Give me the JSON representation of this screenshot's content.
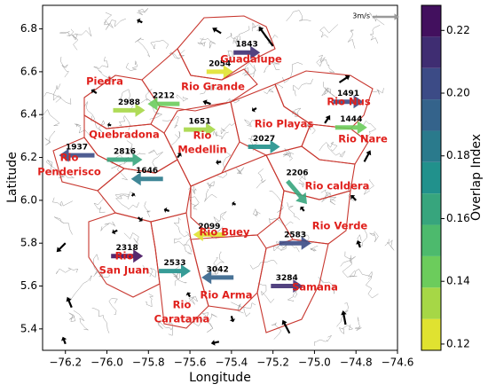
{
  "chart_data": {
    "type": "quiver",
    "xlabel": "Longitude",
    "ylabel": "Latitude",
    "xlim": [
      -76.31,
      -74.6
    ],
    "ylim": [
      5.3,
      6.91
    ],
    "xticks": [
      {
        "value": -76.2,
        "label": "−76.2"
      },
      {
        "value": -76.0,
        "label": "−76.0"
      },
      {
        "value": -75.8,
        "label": "−75.8"
      },
      {
        "value": -75.6,
        "label": "−75.6"
      },
      {
        "value": -75.4,
        "label": "−75.4"
      },
      {
        "value": -75.2,
        "label": "−75.2"
      },
      {
        "value": -75.0,
        "label": "−75.0"
      },
      {
        "value": -74.8,
        "label": "−74.8"
      },
      {
        "value": -74.6,
        "label": "−74.6"
      }
    ],
    "yticks": [
      5.4,
      5.6,
      5.8,
      {
        "value": 6.0,
        "label": "6.0"
      },
      6.2,
      6.4,
      6.6,
      6.8
    ],
    "colorbar": {
      "label": "Overlap Index",
      "clim": [
        0.118,
        0.228
      ],
      "step": 0.01,
      "ticks": [
        0.12,
        0.14,
        0.16,
        0.18,
        {
          "value": 0.2,
          "label": "0.20"
        },
        0.22
      ]
    },
    "quiver_key": {
      "u": 3,
      "label": "3m/s"
    },
    "regions": [
      {
        "lines": [
          "Piedra"
        ]
      },
      {
        "lines": [
          "Rio Grande"
        ]
      },
      {
        "lines": [
          "Guadalupe"
        ]
      },
      {
        "lines": [
          "Rio Nus"
        ]
      },
      {
        "lines": [
          "Rio Nare"
        ]
      },
      {
        "lines": [
          "Rio Playas"
        ]
      },
      {
        "lines": [
          "Quebradona"
        ]
      },
      {
        "lines": [
          "Rio",
          "Medellin"
        ]
      },
      {
        "lines": [
          "Rio",
          "Penderisco"
        ]
      },
      {
        "lines": [
          "Rio caldera"
        ]
      },
      {
        "lines": [
          "Rio Verde"
        ]
      },
      {
        "lines": [
          "Rio Buey"
        ]
      },
      {
        "lines": [
          "Rio",
          "San Juan"
        ]
      },
      {
        "lines": [
          "Samana"
        ]
      },
      {
        "lines": [
          "Rio Arma"
        ]
      },
      {
        "lines": [
          "Rio",
          "Caratama"
        ]
      }
    ],
    "stations": [
      {
        "elevation": 1843,
        "x": -75.39,
        "y": 6.69,
        "u": 3.0,
        "v": 0.0,
        "overlap": 0.215
      },
      {
        "elevation": 2054,
        "x": -75.52,
        "y": 6.6,
        "u": 3.0,
        "v": 0.0,
        "overlap": 0.121
      },
      {
        "elevation": 1491,
        "x": -74.91,
        "y": 6.46,
        "u": 3.4,
        "v": 0.0,
        "overlap": 0.2
      },
      {
        "elevation": 1444,
        "x": -74.9,
        "y": 6.34,
        "u": 3.6,
        "v": 0.0,
        "overlap": 0.146
      },
      {
        "elevation": 2988,
        "x": -75.97,
        "y": 6.42,
        "u": 3.6,
        "v": 0.0,
        "overlap": 0.135
      },
      {
        "elevation": 2212,
        "x": -75.65,
        "y": 6.45,
        "u": -3.6,
        "v": 0.0,
        "overlap": 0.142
      },
      {
        "elevation": 1651,
        "x": -75.63,
        "y": 6.33,
        "u": 3.6,
        "v": 0.0,
        "overlap": 0.136
      },
      {
        "elevation": 2027,
        "x": -75.32,
        "y": 6.25,
        "u": 3.6,
        "v": 0.0,
        "overlap": 0.168
      },
      {
        "elevation": 1937,
        "x": -76.06,
        "y": 6.21,
        "u": -4.0,
        "v": 0.0,
        "overlap": 0.198
      },
      {
        "elevation": 2816,
        "x": -76.0,
        "y": 6.19,
        "u": 4.0,
        "v": 0.0,
        "overlap": 0.164
      },
      {
        "elevation": 1646,
        "x": -75.73,
        "y": 6.1,
        "u": -3.6,
        "v": 0.0,
        "overlap": 0.183
      },
      {
        "elevation": 2206,
        "x": -75.13,
        "y": 6.09,
        "u": 2.2,
        "v": -2.6,
        "overlap": 0.166
      },
      {
        "elevation": 2099,
        "x": -75.43,
        "y": 5.84,
        "u": -3.6,
        "v": 0.0,
        "overlap": 0.124
      },
      {
        "elevation": 2583,
        "x": -75.17,
        "y": 5.8,
        "u": 3.6,
        "v": 0.0,
        "overlap": 0.205
      },
      {
        "elevation": 2318,
        "x": -75.98,
        "y": 5.74,
        "u": 3.6,
        "v": 0.0,
        "overlap": 0.222
      },
      {
        "elevation": 2533,
        "x": -75.75,
        "y": 5.67,
        "u": 3.6,
        "v": 0.0,
        "overlap": 0.172
      },
      {
        "elevation": 3042,
        "x": -75.39,
        "y": 5.64,
        "u": -3.6,
        "v": 0.0,
        "overlap": 0.19
      },
      {
        "elevation": 3284,
        "x": -75.21,
        "y": 5.6,
        "u": 3.6,
        "v": 0.0,
        "overlap": 0.212
      }
    ],
    "wind": [
      {
        "x": -75.2,
        "y": 6.72,
        "u": -1.6,
        "v": 2.2
      },
      {
        "x": -75.45,
        "y": 6.78,
        "u": -1.0,
        "v": 0.6
      },
      {
        "x": -75.83,
        "y": 6.83,
        "u": -0.6,
        "v": 0.3
      },
      {
        "x": -76.05,
        "y": 6.5,
        "u": -0.6,
        "v": 0.4
      },
      {
        "x": -75.98,
        "y": 6.35,
        "u": -0.4,
        "v": 0.1
      },
      {
        "x": -74.88,
        "y": 6.55,
        "u": 1.2,
        "v": 0.8
      },
      {
        "x": -75.5,
        "y": 6.45,
        "u": -0.9,
        "v": 0.3
      },
      {
        "x": -75.28,
        "y": 6.43,
        "u": -0.5,
        "v": -0.3
      },
      {
        "x": -74.95,
        "y": 6.36,
        "u": 0.6,
        "v": 0.9
      },
      {
        "x": -75.45,
        "y": 6.18,
        "u": -0.6,
        "v": -0.1
      },
      {
        "x": -75.66,
        "y": 6.2,
        "u": 0.4,
        "v": 0.5
      },
      {
        "x": -74.76,
        "y": 6.18,
        "u": 0.7,
        "v": 1.3
      },
      {
        "x": -75.88,
        "y": 6.02,
        "u": 0.3,
        "v": 0.3
      },
      {
        "x": -75.95,
        "y": 5.86,
        "u": -0.6,
        "v": -0.3
      },
      {
        "x": -76.2,
        "y": 5.8,
        "u": -1.0,
        "v": -1.0
      },
      {
        "x": -75.7,
        "y": 5.95,
        "u": -0.6,
        "v": 0.2
      },
      {
        "x": -75.38,
        "y": 5.98,
        "u": -0.4,
        "v": 0.2
      },
      {
        "x": -75.05,
        "y": 5.95,
        "u": -0.4,
        "v": 0.5
      },
      {
        "x": -74.8,
        "y": 6.0,
        "u": -0.6,
        "v": 0.6
      },
      {
        "x": -76.17,
        "y": 5.5,
        "u": -0.5,
        "v": 1.2
      },
      {
        "x": -75.6,
        "y": 5.55,
        "u": -0.3,
        "v": 0.5
      },
      {
        "x": -75.4,
        "y": 5.46,
        "u": 0.2,
        "v": -0.7
      },
      {
        "x": -75.12,
        "y": 5.38,
        "u": -0.8,
        "v": 1.5
      },
      {
        "x": -74.85,
        "y": 5.42,
        "u": -0.3,
        "v": 1.6
      },
      {
        "x": -74.78,
        "y": 5.78,
        "u": -0.3,
        "v": 0.8
      },
      {
        "x": -75.46,
        "y": 5.34,
        "u": -0.9,
        "v": -0.2
      },
      {
        "x": -76.2,
        "y": 5.33,
        "u": -0.3,
        "v": 0.8
      },
      {
        "x": -75.85,
        "y": 5.92,
        "u": 0.5,
        "v": -0.4
      }
    ]
  }
}
